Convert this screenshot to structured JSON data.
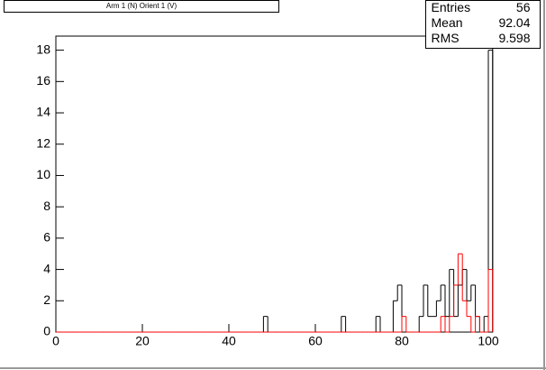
{
  "chart_data": {
    "type": "histogram",
    "title": "Arm 1 (N) Orient 1 (V)",
    "bins": [
      0,
      1,
      2,
      3,
      4,
      5,
      6,
      7,
      8,
      9,
      10,
      11,
      12,
      13,
      14,
      15,
      16,
      17,
      18,
      19,
      20,
      21,
      22,
      23,
      24,
      25,
      26,
      27,
      28,
      29,
      30,
      31,
      32,
      33,
      34,
      35,
      36,
      37,
      38,
      39,
      40,
      41,
      42,
      43,
      44,
      45,
      46,
      47,
      48,
      49,
      50,
      51,
      52,
      53,
      54,
      55,
      56,
      57,
      58,
      59,
      60,
      61,
      62,
      63,
      64,
      65,
      66,
      67,
      68,
      69,
      70,
      71,
      72,
      73,
      74,
      75,
      76,
      77,
      78,
      79,
      80,
      81,
      82,
      83,
      84,
      85,
      86,
      87,
      88,
      89,
      90,
      91,
      92,
      93,
      94,
      95,
      96,
      97,
      98,
      99,
      100,
      101
    ],
    "series": [
      {
        "color": "#000000",
        "values": [
          0,
          0,
          0,
          0,
          0,
          0,
          0,
          0,
          0,
          0,
          0,
          0,
          0,
          0,
          0,
          0,
          0,
          0,
          0,
          0,
          0,
          0,
          0,
          0,
          0,
          0,
          0,
          0,
          0,
          0,
          0,
          0,
          0,
          0,
          0,
          0,
          0,
          0,
          0,
          0,
          0,
          0,
          0,
          0,
          0,
          0,
          0,
          0,
          1,
          0,
          0,
          0,
          0,
          0,
          0,
          0,
          0,
          0,
          0,
          0,
          0,
          0,
          0,
          0,
          0,
          0,
          1,
          0,
          0,
          0,
          0,
          0,
          0,
          0,
          1,
          0,
          0,
          0,
          2,
          3,
          0,
          0,
          0,
          0,
          1,
          3,
          1,
          1,
          2,
          3,
          1,
          4,
          1,
          3,
          4,
          2,
          3,
          1,
          0,
          1,
          18
        ]
      },
      {
        "color": "#ff0000",
        "values": [
          0,
          0,
          0,
          0,
          0,
          0,
          0,
          0,
          0,
          0,
          0,
          0,
          0,
          0,
          0,
          0,
          0,
          0,
          0,
          0,
          0,
          0,
          0,
          0,
          0,
          0,
          0,
          0,
          0,
          0,
          0,
          0,
          0,
          0,
          0,
          0,
          0,
          0,
          0,
          0,
          0,
          0,
          0,
          0,
          0,
          0,
          0,
          0,
          0,
          0,
          0,
          0,
          0,
          0,
          0,
          0,
          0,
          0,
          0,
          0,
          0,
          0,
          0,
          0,
          0,
          0,
          0,
          0,
          0,
          0,
          0,
          0,
          0,
          0,
          0,
          0,
          0,
          0,
          0,
          0,
          1,
          0,
          0,
          0,
          0,
          0,
          0,
          0,
          0,
          1,
          0,
          1,
          3,
          5,
          2,
          1,
          0,
          1,
          0,
          0,
          4
        ]
      }
    ],
    "xlim": [
      0,
      101
    ],
    "xticks": [
      0,
      20,
      40,
      60,
      80,
      100
    ],
    "ylim": [
      0,
      18.9
    ],
    "yticks": [
      0,
      2,
      4,
      6,
      8,
      10,
      12,
      14,
      16,
      18
    ],
    "stats": [
      [
        "Entries",
        "56"
      ],
      [
        "Mean",
        "92.04"
      ],
      [
        "RMS",
        "9.598"
      ]
    ]
  }
}
